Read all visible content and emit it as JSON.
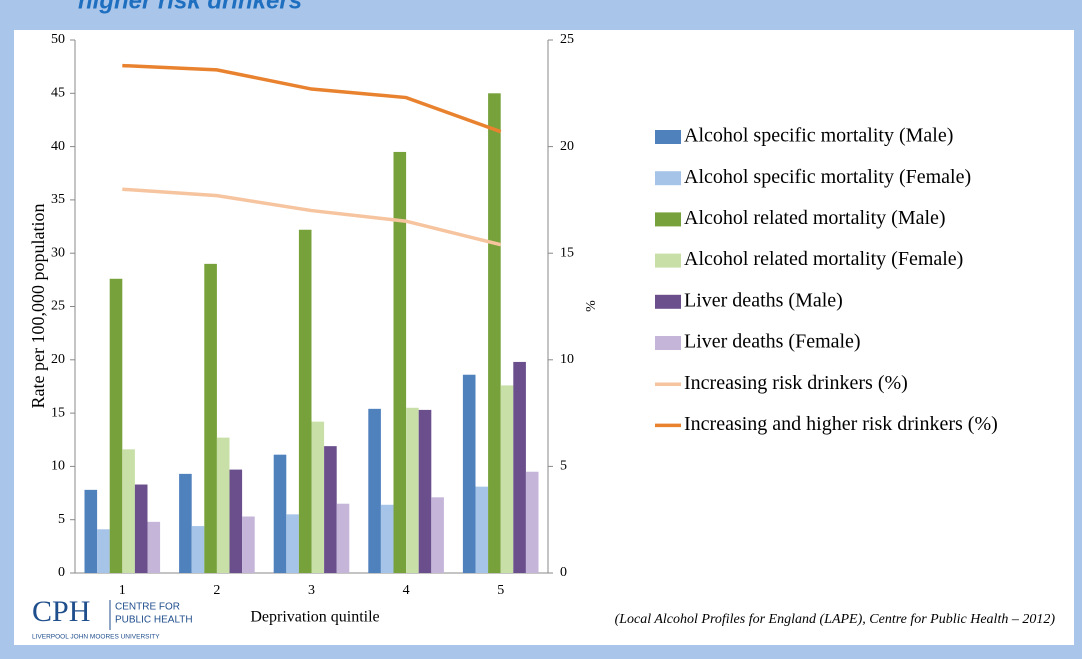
{
  "heading": "higher risk drinkers",
  "logo": {
    "mark": "CPH",
    "line1": "CENTRE FOR",
    "line2": "PUBLIC HEALTH",
    "line3": "LIVERPOOL JOHN MOORES UNIVERSITY"
  },
  "source": "(Local Alcohol Profiles for England (LAPE), Centre for Public Health – 2012)",
  "chart_data": {
    "type": "bar",
    "xlabel": "Deprivation quintile",
    "ylabel": "Rate per 100,000 population",
    "y2label": "%",
    "categories": [
      "1",
      "2",
      "3",
      "4",
      "5"
    ],
    "ylim": [
      0,
      50
    ],
    "yticks": [
      0,
      5,
      10,
      15,
      20,
      25,
      30,
      35,
      40,
      45,
      50
    ],
    "y2lim": [
      0,
      25
    ],
    "y2ticks": [
      0,
      5,
      10,
      15,
      20,
      25
    ],
    "grid": false,
    "legend": "right",
    "series": [
      {
        "name": "Alcohol specific mortality (Male)",
        "color": "#4f81bd",
        "values": [
          7.8,
          9.3,
          11.1,
          15.4,
          18.6
        ]
      },
      {
        "name": "Alcohol specific mortality (Female)",
        "color": "#a6c3e8",
        "values": [
          4.1,
          4.4,
          5.5,
          6.4,
          8.1
        ]
      },
      {
        "name": "Alcohol related mortality (Male)",
        "color": "#77a13a",
        "values": [
          27.6,
          29.0,
          32.2,
          39.5,
          45.0
        ]
      },
      {
        "name": "Alcohol related mortality (Female)",
        "color": "#c8e0a8",
        "values": [
          11.6,
          12.7,
          14.2,
          15.5,
          17.6
        ]
      },
      {
        "name": "Liver deaths (Male)",
        "color": "#6a4f8c",
        "values": [
          8.3,
          9.7,
          11.9,
          15.3,
          19.8
        ]
      },
      {
        "name": "Liver deaths (Female)",
        "color": "#c4b5d9",
        "values": [
          4.8,
          5.3,
          6.5,
          7.1,
          9.5
        ]
      },
      {
        "name": "Increasing risk drinkers (%)",
        "color": "#f6c49f",
        "type": "line",
        "axis": "y2",
        "values": [
          18.0,
          17.7,
          17.0,
          16.5,
          15.4
        ]
      },
      {
        "name": "Increasing and higher risk drinkers (%)",
        "color": "#e9822f",
        "type": "line",
        "axis": "y2",
        "values": [
          23.8,
          23.6,
          22.7,
          22.3,
          20.7
        ]
      }
    ]
  }
}
